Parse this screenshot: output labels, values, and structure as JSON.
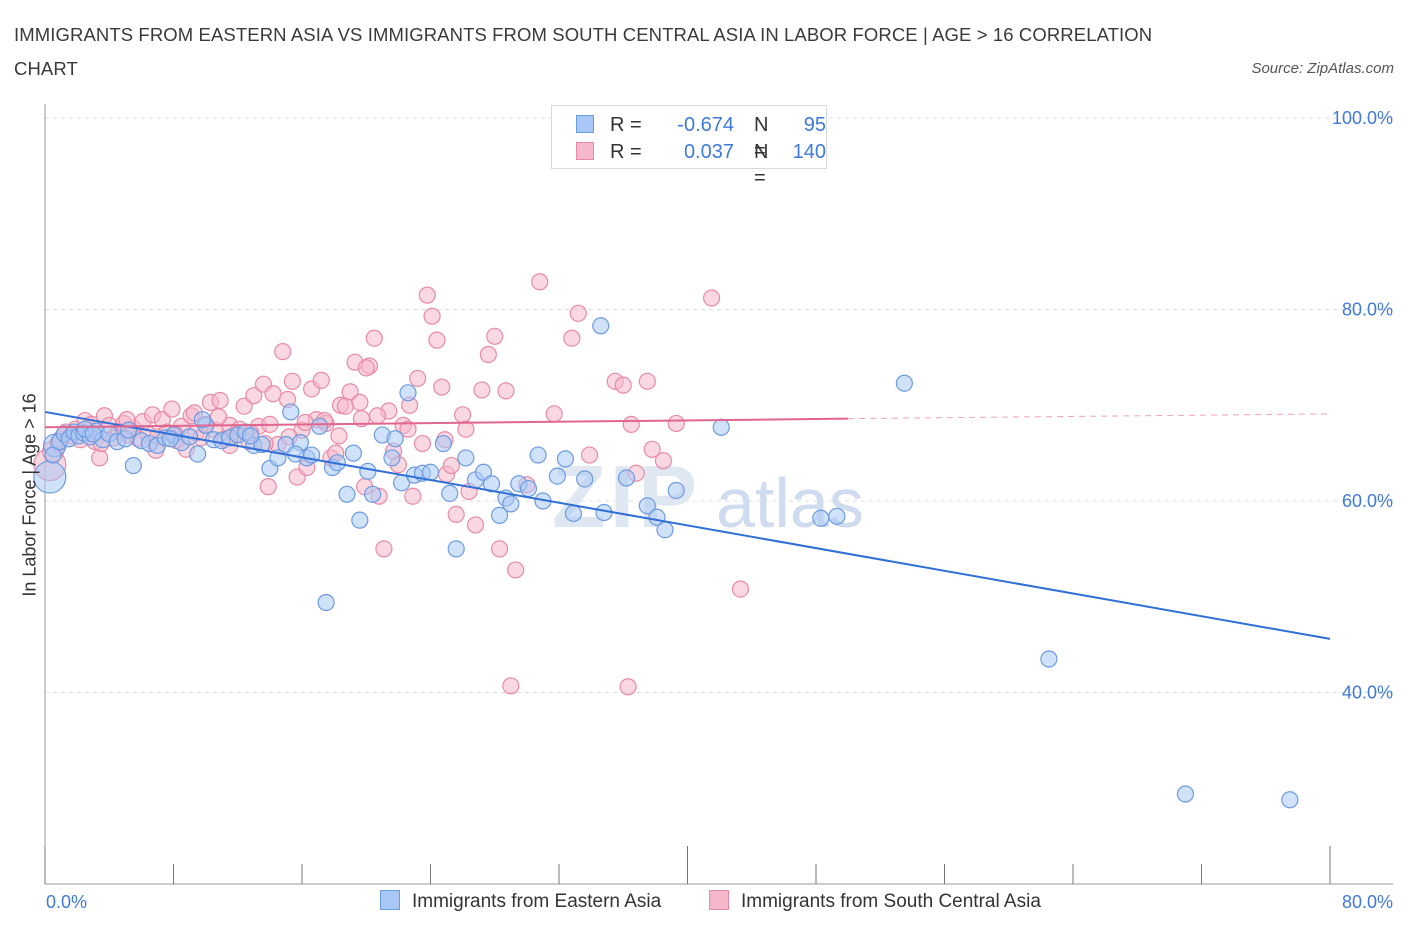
{
  "title": "IMMIGRANTS FROM EASTERN ASIA VS IMMIGRANTS FROM SOUTH CENTRAL ASIA IN LABOR FORCE | AGE > 16 CORRELATION CHART",
  "source": "Source: ZipAtlas.com",
  "watermark": {
    "part1": "ZIP",
    "part2": "atlas"
  },
  "colors": {
    "blue_fill": "#a9c8f5",
    "blue_stroke": "#6d9be0",
    "blue_line": "#2f6fd6",
    "pink_fill": "#f5b8cb",
    "pink_stroke": "#e88aa7",
    "pink_line": "#e0668e",
    "axis_text": "#3f7ad6",
    "grid": "#dcdcdc"
  },
  "legend": {
    "series": [
      {
        "name": "Immigrants from Eastern Asia",
        "r_label": "R =",
        "r_value": "-0.674",
        "n_label": "N =",
        "n_value": "95"
      },
      {
        "name": "Immigrants from South Central Asia",
        "r_label": "R =",
        "r_value": "0.037",
        "n_label": "N =",
        "n_value": "140"
      }
    ]
  },
  "chart_data": {
    "type": "scatter",
    "title": "IMMIGRANTS FROM EASTERN ASIA VS IMMIGRANTS FROM SOUTH CENTRAL ASIA IN LABOR FORCE | AGE > 16 CORRELATION CHART",
    "xlabel": "",
    "ylabel": "In Labor Force | Age > 16",
    "xlim": [
      0,
      80
    ],
    "ylim": [
      20,
      100
    ],
    "x_tick_labels": [
      "0.0%",
      "80.0%"
    ],
    "y_ticks": [
      40,
      60,
      80,
      100
    ],
    "y_tick_labels": [
      "40.0%",
      "60.0%",
      "80.0%",
      "100.0%"
    ],
    "grid": true,
    "series": [
      {
        "name": "Immigrants from Eastern Asia",
        "color": "blue",
        "trend": {
          "x": [
            0,
            80
          ],
          "y": [
            69.3,
            45.6
          ]
        },
        "points": [
          [
            0.3,
            62.5,
            2
          ],
          [
            0.6,
            65.8,
            1.4
          ],
          [
            0.5,
            64.8,
            1
          ],
          [
            0.9,
            66.2,
            1
          ],
          [
            1.2,
            67.0,
            1
          ],
          [
            1.5,
            66.5,
            1
          ],
          [
            1.8,
            67.2,
            1
          ],
          [
            2.1,
            66.8,
            1
          ],
          [
            2.4,
            67.1,
            1
          ],
          [
            2.8,
            66.7,
            1
          ],
          [
            3.2,
            67.3,
            1
          ],
          [
            3.6,
            66.4,
            1
          ],
          [
            4.0,
            67.0,
            1
          ],
          [
            4.5,
            66.2,
            1
          ],
          [
            5.0,
            66.5,
            1
          ],
          [
            5.5,
            63.7,
            1
          ],
          [
            6.0,
            66.3,
            1
          ],
          [
            6.5,
            66.0,
            1
          ],
          [
            7.0,
            65.8,
            1
          ],
          [
            7.5,
            66.6,
            1
          ],
          [
            8.0,
            66.9,
            1
          ],
          [
            8.5,
            66.1,
            1
          ],
          [
            9.0,
            66.7,
            1
          ],
          [
            9.5,
            64.9,
            1
          ],
          [
            10.0,
            67.9,
            1
          ],
          [
            10.5,
            66.4,
            1
          ],
          [
            11.0,
            66.3,
            1
          ],
          [
            11.5,
            66.6,
            1
          ],
          [
            12.0,
            66.9,
            1
          ],
          [
            12.5,
            67.2,
            1
          ],
          [
            13.0,
            65.8,
            1
          ],
          [
            13.5,
            65.9,
            1
          ],
          [
            14.0,
            63.4,
            1
          ],
          [
            14.5,
            64.5,
            1
          ],
          [
            15.0,
            65.9,
            1
          ],
          [
            15.3,
            69.3,
            1
          ],
          [
            15.9,
            66.1,
            1
          ],
          [
            16.3,
            64.5,
            1
          ],
          [
            16.6,
            64.8,
            1
          ],
          [
            17.1,
            67.8,
            1
          ],
          [
            17.5,
            49.4,
            1
          ],
          [
            17.9,
            63.5,
            1
          ],
          [
            18.2,
            64.0,
            1
          ],
          [
            18.8,
            60.7,
            1
          ],
          [
            19.2,
            65.0,
            1
          ],
          [
            19.6,
            58.0,
            1
          ],
          [
            20.1,
            63.1,
            1
          ],
          [
            20.4,
            60.7,
            1
          ],
          [
            21.0,
            66.9,
            1
          ],
          [
            21.6,
            64.5,
            1
          ],
          [
            21.8,
            66.5,
            1
          ],
          [
            22.2,
            61.9,
            1
          ],
          [
            22.6,
            71.3,
            1
          ],
          [
            23.0,
            62.7,
            1
          ],
          [
            23.5,
            62.9,
            1
          ],
          [
            24.0,
            63.0,
            1
          ],
          [
            24.8,
            66.0,
            1
          ],
          [
            25.2,
            60.8,
            1
          ],
          [
            25.6,
            55.0,
            1
          ],
          [
            26.2,
            64.5,
            1
          ],
          [
            26.8,
            62.2,
            1
          ],
          [
            27.3,
            63.0,
            1
          ],
          [
            27.8,
            61.8,
            1
          ],
          [
            28.3,
            58.5,
            1
          ],
          [
            28.7,
            60.3,
            1
          ],
          [
            29.0,
            59.7,
            1
          ],
          [
            29.5,
            61.8,
            1
          ],
          [
            30.1,
            61.3,
            1
          ],
          [
            30.7,
            64.8,
            1
          ],
          [
            31.0,
            60.0,
            1
          ],
          [
            31.9,
            62.6,
            1
          ],
          [
            32.4,
            64.4,
            1
          ],
          [
            32.9,
            58.7,
            1
          ],
          [
            33.6,
            62.3,
            1
          ],
          [
            34.6,
            78.3,
            1
          ],
          [
            34.8,
            58.8,
            1
          ],
          [
            36.2,
            62.4,
            1
          ],
          [
            37.5,
            59.5,
            1
          ],
          [
            38.1,
            58.3,
            1
          ],
          [
            38.6,
            57.0,
            1
          ],
          [
            39.3,
            61.1,
            1
          ],
          [
            42.1,
            67.7,
            1
          ],
          [
            48.3,
            58.2,
            1
          ],
          [
            49.3,
            58.4,
            1
          ],
          [
            53.5,
            72.3,
            1
          ],
          [
            62.5,
            43.5,
            1
          ],
          [
            71.0,
            29.4,
            1
          ],
          [
            77.5,
            28.8,
            1
          ],
          [
            2.5,
            67.5,
            1
          ],
          [
            7.8,
            66.5,
            1
          ],
          [
            12.8,
            66.8,
            1
          ],
          [
            3.0,
            67.0,
            1
          ],
          [
            9.8,
            68.5,
            1
          ],
          [
            15.6,
            64.9,
            1
          ],
          [
            5.2,
            67.4,
            1
          ]
        ]
      },
      {
        "name": "Immigrants from South Central Asia",
        "color": "pink",
        "trend": {
          "x": [
            0,
            50
          ],
          "y": [
            67.7,
            68.6
          ],
          "dashed_to": {
            "x": 80,
            "y": 69.1
          }
        },
        "points": [
          [
            0.3,
            63.8,
            2
          ],
          [
            0.5,
            65.2,
            1.3
          ],
          [
            0.8,
            66.0,
            1
          ],
          [
            1.0,
            66.5,
            1
          ],
          [
            1.3,
            67.2,
            1
          ],
          [
            1.6,
            66.8,
            1
          ],
          [
            1.9,
            67.5,
            1
          ],
          [
            2.2,
            66.4,
            1
          ],
          [
            2.5,
            68.4,
            1
          ],
          [
            2.8,
            67.0,
            1
          ],
          [
            3.1,
            66.2,
            1
          ],
          [
            3.4,
            64.5,
            1
          ],
          [
            3.7,
            68.9,
            1
          ],
          [
            4.0,
            67.9,
            1
          ],
          [
            4.3,
            66.6,
            1
          ],
          [
            4.6,
            67.3,
            1
          ],
          [
            4.9,
            68.1,
            1
          ],
          [
            5.2,
            66.9,
            1
          ],
          [
            5.5,
            67.6,
            1
          ],
          [
            5.8,
            66.5,
            1
          ],
          [
            6.1,
            68.3,
            1
          ],
          [
            6.4,
            67.0,
            1
          ],
          [
            6.7,
            69.0,
            1
          ],
          [
            7.0,
            66.7,
            1
          ],
          [
            7.3,
            68.5,
            1
          ],
          [
            7.6,
            67.2,
            1
          ],
          [
            7.9,
            69.6,
            1
          ],
          [
            8.2,
            66.3,
            1
          ],
          [
            8.5,
            67.8,
            1
          ],
          [
            8.8,
            65.4,
            1
          ],
          [
            9.1,
            68.9,
            1
          ],
          [
            9.4,
            67.1,
            1
          ],
          [
            9.7,
            66.6,
            1
          ],
          [
            10.0,
            68.0,
            1
          ],
          [
            10.3,
            70.3,
            1
          ],
          [
            10.6,
            67.4,
            1
          ],
          [
            10.9,
            70.5,
            1
          ],
          [
            11.2,
            66.5,
            1
          ],
          [
            11.5,
            67.9,
            1
          ],
          [
            11.8,
            66.9,
            1
          ],
          [
            12.1,
            67.5,
            1
          ],
          [
            12.4,
            69.9,
            1
          ],
          [
            12.7,
            66.2,
            1
          ],
          [
            13.0,
            71.0,
            1
          ],
          [
            13.3,
            67.8,
            1
          ],
          [
            13.6,
            72.2,
            1
          ],
          [
            13.9,
            61.5,
            1
          ],
          [
            14.2,
            71.2,
            1
          ],
          [
            14.5,
            65.9,
            1
          ],
          [
            14.8,
            75.6,
            1
          ],
          [
            15.1,
            70.6,
            1
          ],
          [
            15.4,
            72.5,
            1
          ],
          [
            15.7,
            62.5,
            1
          ],
          [
            16.0,
            67.4,
            1
          ],
          [
            16.3,
            63.5,
            1
          ],
          [
            16.6,
            71.7,
            1
          ],
          [
            16.9,
            68.5,
            1
          ],
          [
            17.2,
            72.6,
            1
          ],
          [
            17.5,
            68.1,
            1
          ],
          [
            17.8,
            64.5,
            1
          ],
          [
            18.1,
            65.0,
            1
          ],
          [
            18.4,
            70.0,
            1
          ],
          [
            18.7,
            69.9,
            1
          ],
          [
            19.0,
            71.4,
            1
          ],
          [
            19.3,
            74.5,
            1
          ],
          [
            19.6,
            70.3,
            1
          ],
          [
            19.9,
            61.5,
            1
          ],
          [
            20.2,
            74.1,
            1
          ],
          [
            20.5,
            77.0,
            1
          ],
          [
            20.8,
            60.5,
            1
          ],
          [
            21.1,
            55.0,
            1
          ],
          [
            21.4,
            69.4,
            1
          ],
          [
            21.7,
            65.2,
            1
          ],
          [
            22.0,
            63.8,
            1
          ],
          [
            22.3,
            67.9,
            1
          ],
          [
            22.6,
            67.5,
            1
          ],
          [
            22.9,
            60.5,
            1
          ],
          [
            23.2,
            72.8,
            1
          ],
          [
            23.5,
            66.0,
            1
          ],
          [
            23.8,
            81.5,
            1
          ],
          [
            24.1,
            79.3,
            1
          ],
          [
            24.4,
            76.8,
            1
          ],
          [
            24.7,
            71.9,
            1
          ],
          [
            25.0,
            62.8,
            1
          ],
          [
            25.3,
            63.7,
            1
          ],
          [
            25.6,
            58.6,
            1
          ],
          [
            26.0,
            69.0,
            1
          ],
          [
            26.4,
            61.0,
            1
          ],
          [
            26.8,
            57.5,
            1
          ],
          [
            27.2,
            71.6,
            1
          ],
          [
            27.6,
            75.3,
            1
          ],
          [
            28.0,
            77.2,
            1
          ],
          [
            28.3,
            55.0,
            1
          ],
          [
            28.7,
            71.5,
            1
          ],
          [
            29.0,
            40.7,
            1
          ],
          [
            29.3,
            52.8,
            1
          ],
          [
            30.0,
            61.7,
            1
          ],
          [
            30.8,
            82.9,
            1
          ],
          [
            31.7,
            69.1,
            1
          ],
          [
            32.8,
            77.0,
            1
          ],
          [
            33.2,
            79.6,
            1
          ],
          [
            33.9,
            64.8,
            1
          ],
          [
            35.5,
            72.5,
            1
          ],
          [
            36.0,
            72.1,
            1
          ],
          [
            36.3,
            40.6,
            1
          ],
          [
            36.5,
            68.0,
            1
          ],
          [
            36.8,
            62.9,
            1
          ],
          [
            37.5,
            72.5,
            1
          ],
          [
            37.8,
            65.4,
            1
          ],
          [
            38.5,
            64.2,
            1
          ],
          [
            39.3,
            68.1,
            1
          ],
          [
            41.5,
            81.2,
            1
          ],
          [
            43.3,
            50.8,
            1
          ],
          [
            20.0,
            73.9,
            1
          ],
          [
            17.4,
            68.4,
            1
          ],
          [
            11.5,
            65.8,
            1
          ],
          [
            14.0,
            68.0,
            1
          ],
          [
            9.3,
            69.2,
            1
          ],
          [
            6.9,
            65.3,
            1
          ],
          [
            5.1,
            68.5,
            1
          ],
          [
            12.8,
            67.1,
            1
          ],
          [
            18.3,
            66.8,
            1
          ],
          [
            22.7,
            70.0,
            1
          ],
          [
            26.2,
            67.5,
            1
          ],
          [
            16.2,
            68.2,
            1
          ],
          [
            20.7,
            68.9,
            1
          ],
          [
            15.2,
            66.7,
            1
          ],
          [
            3.5,
            66.0,
            1
          ],
          [
            8.1,
            67.0,
            1
          ],
          [
            10.8,
            68.8,
            1
          ],
          [
            13.7,
            66.0,
            1
          ],
          [
            19.7,
            68.6,
            1
          ],
          [
            24.9,
            66.4,
            1
          ],
          [
            2.9,
            68.0,
            1
          ]
        ]
      }
    ]
  }
}
